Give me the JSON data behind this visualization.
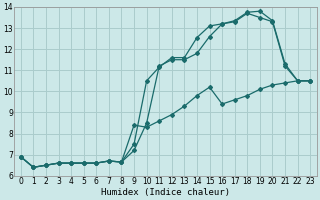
{
  "xlabel": "Humidex (Indice chaleur)",
  "bg_color": "#cce8e8",
  "grid_color": "#aacccc",
  "line_color": "#1a6b6b",
  "xlim": [
    -0.5,
    23.5
  ],
  "ylim": [
    6,
    14
  ],
  "xticks": [
    0,
    1,
    2,
    3,
    4,
    5,
    6,
    7,
    8,
    9,
    10,
    11,
    12,
    13,
    14,
    15,
    16,
    17,
    18,
    19,
    20,
    21,
    22,
    23
  ],
  "yticks": [
    6,
    7,
    8,
    9,
    10,
    11,
    12,
    13,
    14
  ],
  "line1_x": [
    0,
    1,
    2,
    3,
    4,
    5,
    6,
    7,
    8,
    9,
    10,
    11,
    12,
    13,
    14,
    15,
    16,
    17,
    18,
    19,
    20,
    21,
    22,
    23
  ],
  "line1_y": [
    6.9,
    6.4,
    6.5,
    6.6,
    6.6,
    6.6,
    6.6,
    6.7,
    6.65,
    8.4,
    8.3,
    8.6,
    8.9,
    9.3,
    9.8,
    10.2,
    9.4,
    9.6,
    9.8,
    10.1,
    10.3,
    10.4,
    10.5,
    10.5
  ],
  "line2_x": [
    0,
    1,
    2,
    3,
    4,
    5,
    6,
    7,
    8,
    9,
    10,
    11,
    12,
    13,
    14,
    15,
    16,
    17,
    18,
    19,
    20,
    21,
    22,
    23
  ],
  "line2_y": [
    6.9,
    6.4,
    6.5,
    6.6,
    6.6,
    6.6,
    6.6,
    6.7,
    6.65,
    7.2,
    8.5,
    11.2,
    11.5,
    11.5,
    11.8,
    12.6,
    13.2,
    13.3,
    13.7,
    13.5,
    13.3,
    11.2,
    10.5,
    10.5
  ],
  "line3_x": [
    0,
    1,
    2,
    3,
    4,
    5,
    6,
    7,
    8,
    9,
    10,
    11,
    12,
    13,
    14,
    15,
    16,
    17,
    18,
    19,
    20,
    21,
    22,
    23
  ],
  "line3_y": [
    6.9,
    6.4,
    6.5,
    6.6,
    6.6,
    6.6,
    6.6,
    6.7,
    6.65,
    7.5,
    10.5,
    11.15,
    11.6,
    11.6,
    12.55,
    13.1,
    13.2,
    13.35,
    13.75,
    13.8,
    13.35,
    11.3,
    10.5,
    10.5
  ]
}
